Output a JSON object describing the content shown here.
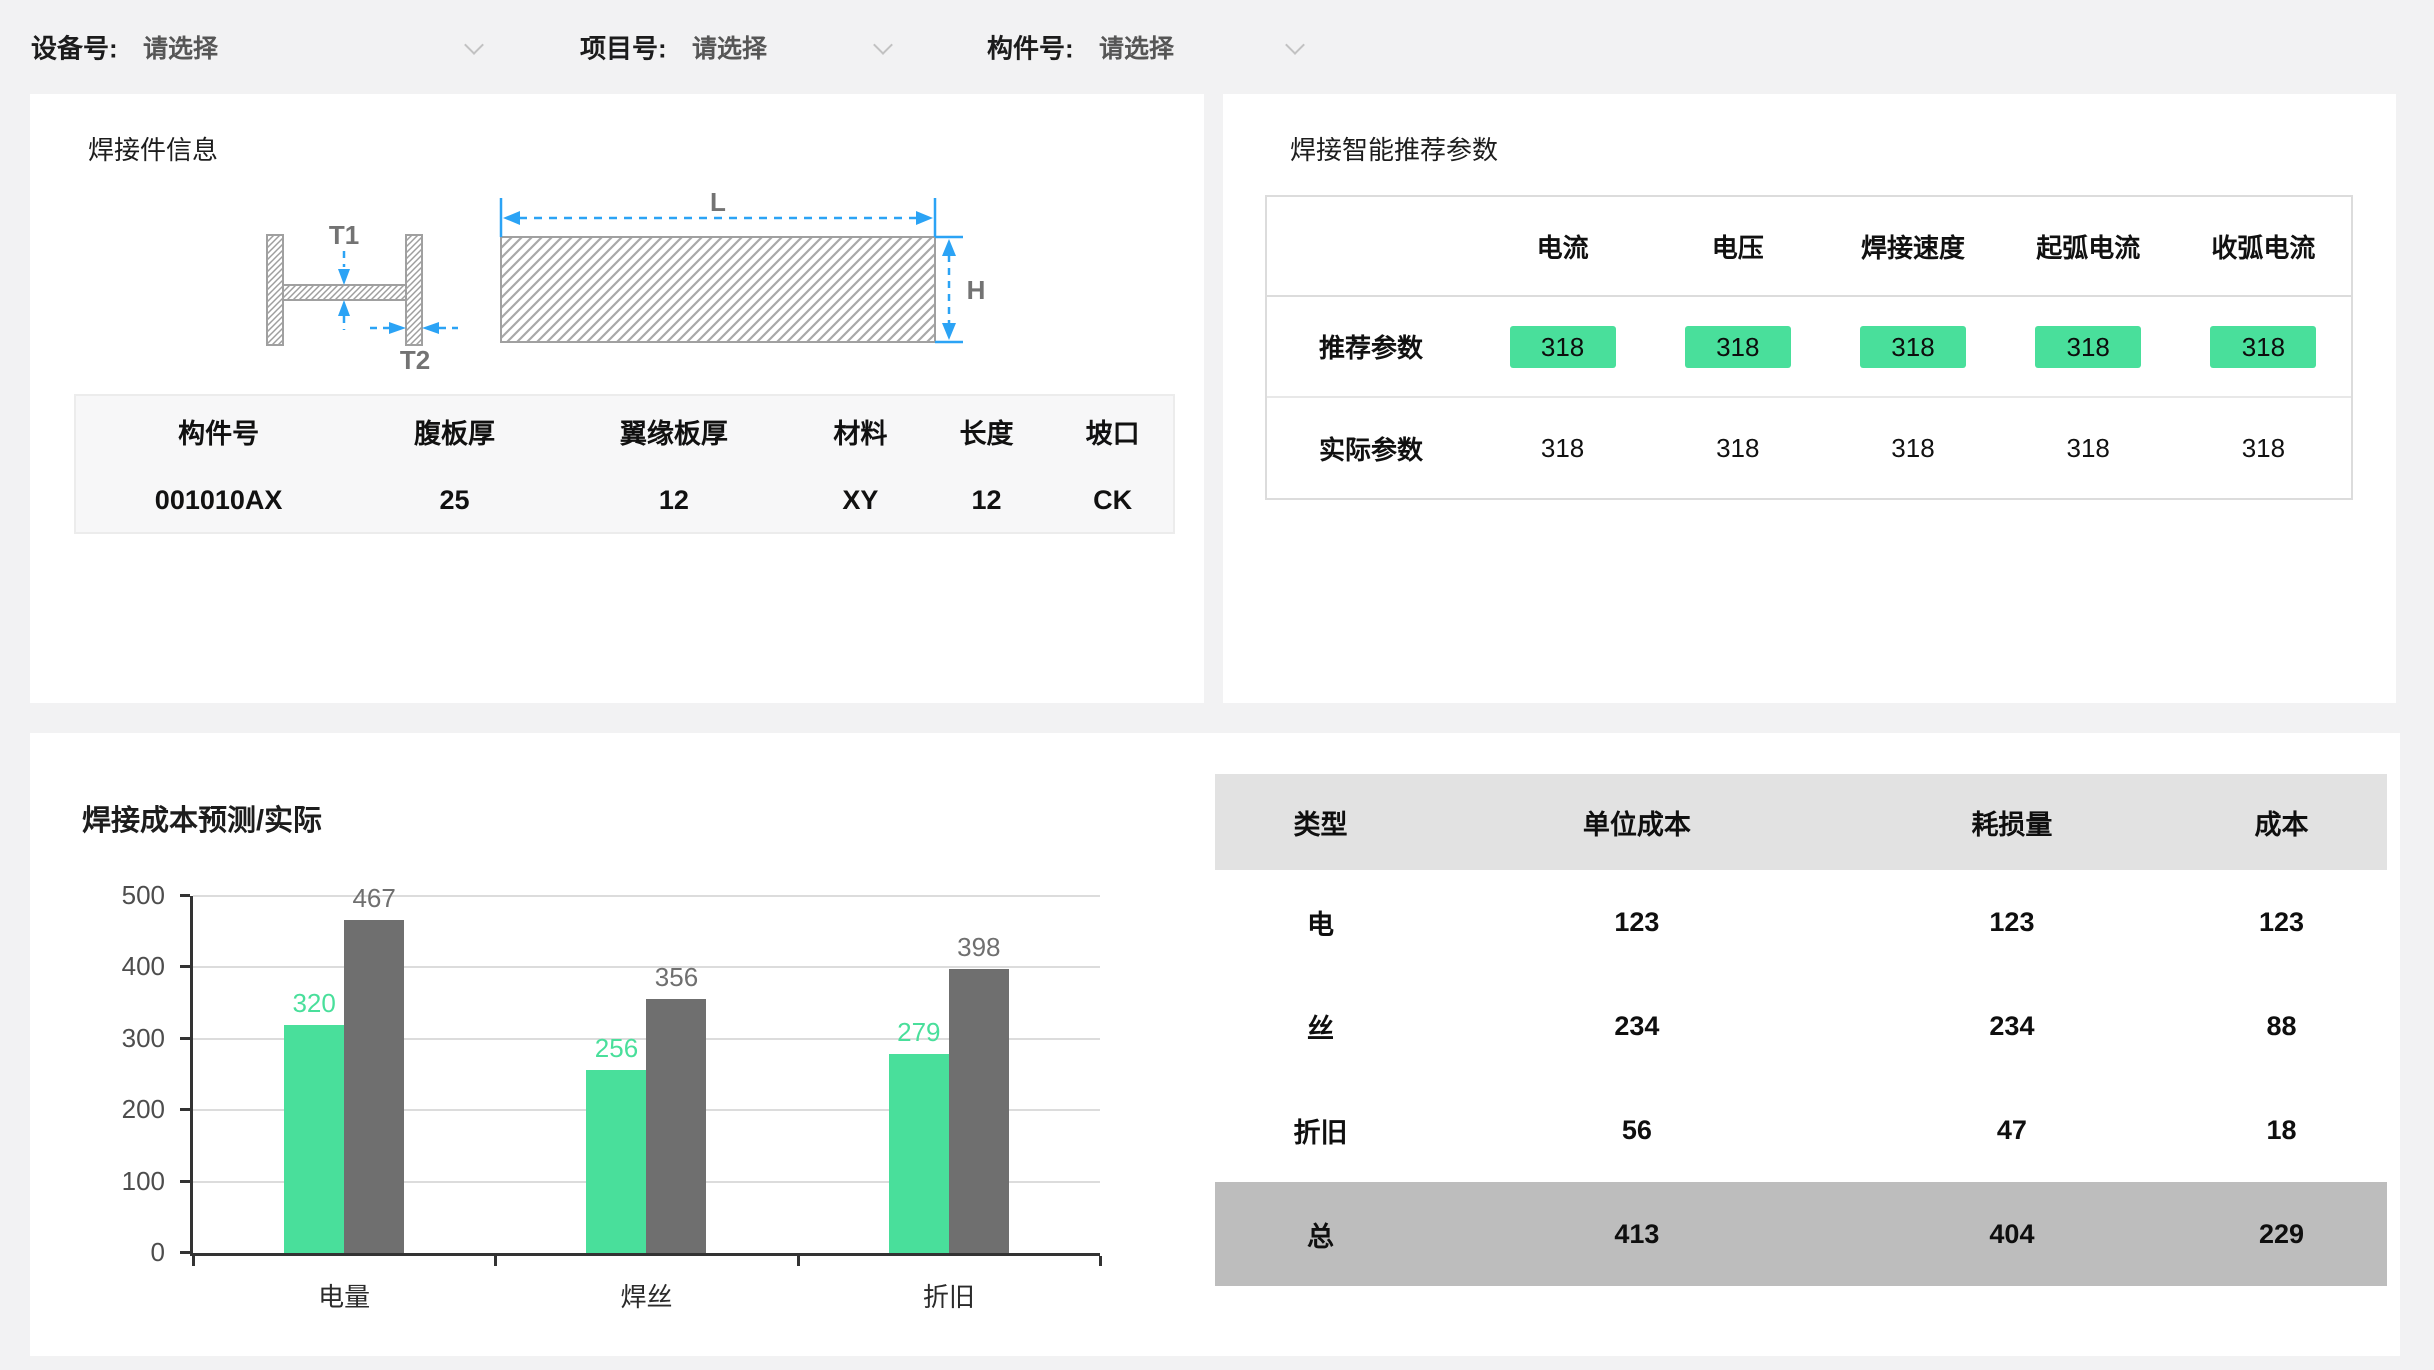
{
  "colors": {
    "accent_green": "#49df9b",
    "bar_gray": "#6f6f6f",
    "dimension_blue": "#2ba3f5",
    "table_header_gray": "#e2e2e2",
    "table_total_gray": "#bdbdbd"
  },
  "filters": [
    {
      "label": "设备号:",
      "value": "请选择"
    },
    {
      "label": "项目号:",
      "value": "请选择"
    },
    {
      "label": "构件号:",
      "value": "请选择"
    }
  ],
  "part_info": {
    "title": "焊接件信息",
    "diagram": {
      "t1": "T1",
      "t2": "T2",
      "l": "L",
      "h": "H"
    },
    "table": {
      "headers": [
        "构件号",
        "腹板厚",
        "翼缘板厚",
        "材料",
        "长度",
        "坡口"
      ],
      "row": [
        "001010AX",
        "25",
        "12",
        "XY",
        "12",
        "CK"
      ]
    }
  },
  "recommend": {
    "title": "焊接智能推荐参数",
    "columns": [
      "电流",
      "电压",
      "焊接速度",
      "起弧电流",
      "收弧电流"
    ],
    "rows": [
      {
        "label": "推荐参数",
        "values": [
          "318",
          "318",
          "318",
          "318",
          "318"
        ],
        "highlighted": true
      },
      {
        "label": "实际参数",
        "values": [
          "318",
          "318",
          "318",
          "318",
          "318"
        ],
        "highlighted": false
      }
    ]
  },
  "cost_section": {
    "table": {
      "headers": [
        "类型",
        "单位成本",
        "耗损量",
        "成本"
      ],
      "rows": [
        [
          "电",
          "123",
          "123",
          "123"
        ],
        [
          "丝",
          "234",
          "234",
          "88"
        ],
        [
          "折旧",
          "56",
          "47",
          "18"
        ]
      ],
      "total": [
        "总",
        "413",
        "404",
        "229"
      ]
    }
  },
  "chart_data": {
    "type": "bar",
    "title": "焊接成本预测/实际",
    "categories": [
      "电量",
      "焊丝",
      "折旧"
    ],
    "series": [
      {
        "name": "预测",
        "color": "#49df9b",
        "values": [
          320,
          256,
          279
        ]
      },
      {
        "name": "实际",
        "color": "#6f6f6f",
        "values": [
          467,
          356,
          398
        ]
      }
    ],
    "xlabel": "",
    "ylabel": "",
    "ylim": [
      0,
      500
    ],
    "yticks": [
      0,
      100,
      200,
      300,
      400,
      500
    ],
    "grid": true,
    "legend": "none"
  }
}
